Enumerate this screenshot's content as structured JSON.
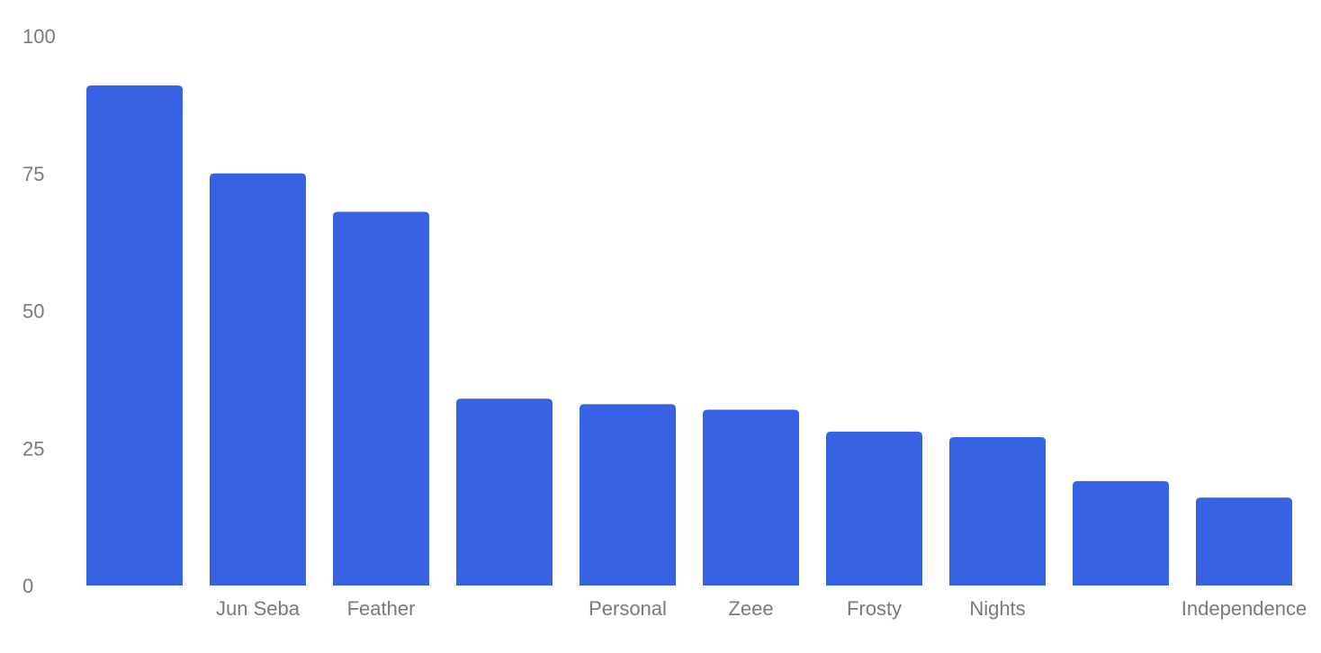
{
  "chart_data": {
    "type": "bar",
    "categories": [
      "",
      "Jun Seba",
      "Feather",
      "",
      "Personal",
      "Zeee",
      "Frosty",
      "Nights",
      "",
      "Independence"
    ],
    "values": [
      91,
      75,
      68,
      34,
      33,
      32,
      28,
      27,
      19,
      16
    ],
    "yticks": [
      0,
      25,
      50,
      75,
      100
    ],
    "ylim": [
      0,
      100
    ],
    "grid": false,
    "bar_color": "#3762e3"
  }
}
